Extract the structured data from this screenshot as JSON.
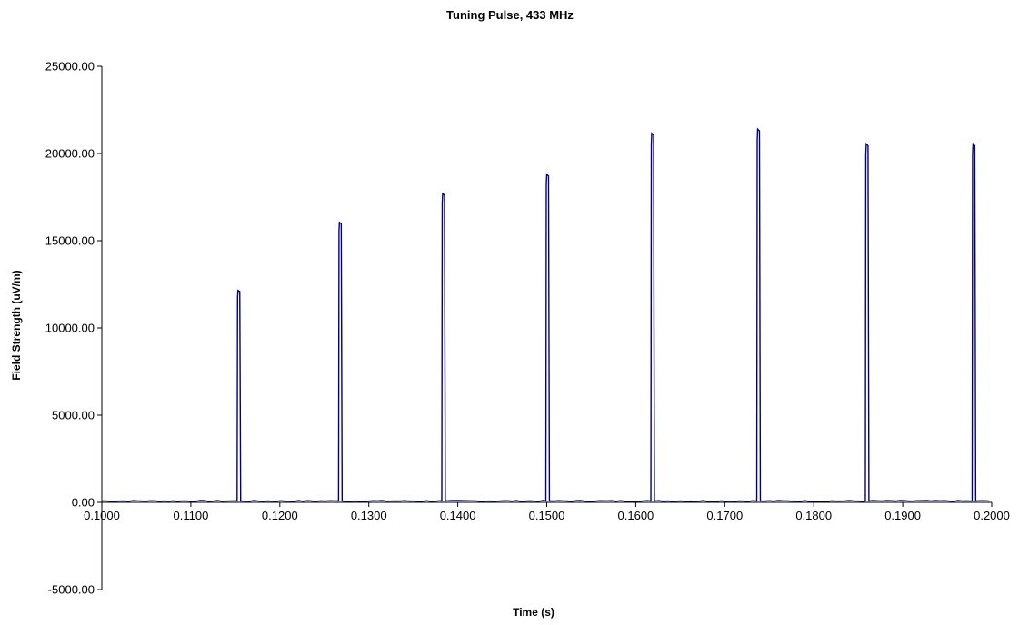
{
  "chart_data": {
    "type": "line",
    "title": "Tuning Pulse, 433 MHz",
    "xlabel": "Time (s)",
    "ylabel": "Field Strength (uV/m)",
    "xlim": [
      0.1,
      0.2
    ],
    "ylim": [
      -5000,
      25000
    ],
    "x_ticks": [
      "0.1000",
      "0.1100",
      "0.1200",
      "0.1300",
      "0.1400",
      "0.1500",
      "0.1600",
      "0.1700",
      "0.1800",
      "0.1900",
      "0.2000"
    ],
    "y_ticks": [
      "-5000.00",
      "0.00",
      "5000.00",
      "10000.00",
      "15000.00",
      "20000.00",
      "25000.00"
    ],
    "grid": false,
    "legend": "none",
    "baseline": 80,
    "series": [
      {
        "color": "#000080",
        "pulses": [
          {
            "start": 0.1152,
            "end": 0.1156,
            "peak": 12150
          },
          {
            "start": 0.1266,
            "end": 0.127,
            "peak": 16050
          },
          {
            "start": 0.1382,
            "end": 0.1386,
            "peak": 17700
          },
          {
            "start": 0.1499,
            "end": 0.1503,
            "peak": 18800
          },
          {
            "start": 0.1617,
            "end": 0.1621,
            "peak": 21150
          },
          {
            "start": 0.1736,
            "end": 0.174,
            "peak": 21400
          },
          {
            "start": 0.1858,
            "end": 0.1862,
            "peak": 20550
          },
          {
            "start": 0.1978,
            "end": 0.1982,
            "peak": 20550
          }
        ]
      }
    ]
  }
}
